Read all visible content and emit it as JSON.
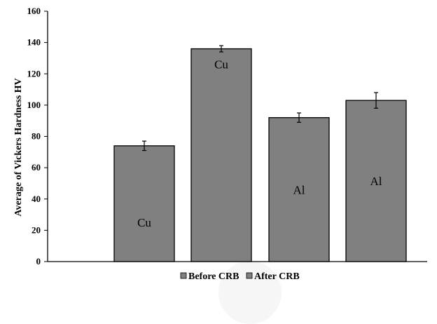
{
  "chart_data": {
    "type": "bar",
    "title": "",
    "xlabel": "",
    "ylabel": "Average of Vickers Hardness HV",
    "ylim": [
      0,
      160
    ],
    "yticks": [
      0,
      20,
      40,
      60,
      80,
      100,
      120,
      140,
      160
    ],
    "grid": false,
    "legend_position": "bottom",
    "legend": [
      "Before CRB",
      "After CRB"
    ],
    "bar_color": "#808080",
    "bars": [
      {
        "label": "Cu",
        "value": 74,
        "error": 3,
        "series": "Before CRB",
        "label_position": "bottom"
      },
      {
        "label": "Cu",
        "value": 136,
        "error": 2,
        "series": "After CRB",
        "label_position": "top"
      },
      {
        "label": "Al",
        "value": 92,
        "error": 3,
        "series": "Before CRB",
        "label_position": "middle"
      },
      {
        "label": "Al",
        "value": 103,
        "error": 5,
        "series": "After CRB",
        "label_position": "middle"
      }
    ]
  }
}
